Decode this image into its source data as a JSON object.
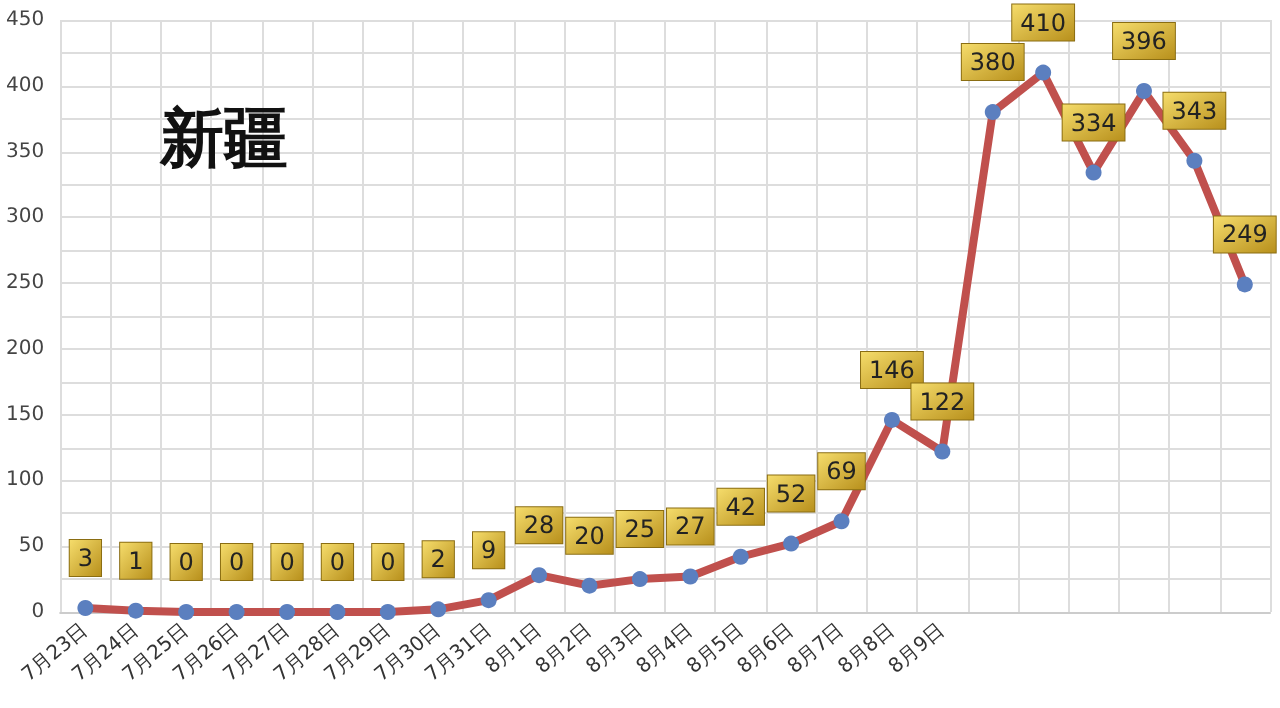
{
  "chart_data": {
    "type": "line",
    "title": "新疆",
    "categories": [
      "7月23日",
      "7月24日",
      "7月25日",
      "7月26日",
      "7月27日",
      "7月28日",
      "7月29日",
      "7月30日",
      "7月31日",
      "8月1日",
      "8月2日",
      "8月3日",
      "8月4日",
      "8月5日",
      "8月6日",
      "8月7日",
      "8月8日",
      "8月9日",
      null,
      null,
      null,
      null,
      null,
      null
    ],
    "series": [
      {
        "color": "#c0504d",
        "values": [
          3,
          1,
          0,
          0,
          0,
          0,
          0,
          2,
          9,
          28,
          20,
          25,
          27,
          42,
          52,
          69,
          146,
          122,
          380,
          410,
          334,
          396,
          343,
          249
        ]
      }
    ],
    "ylim": [
      0,
      450
    ],
    "yticks": [
      0,
      {
        "value": 25,
        "label": null
      },
      50,
      {
        "value": 75,
        "label": null
      },
      100,
      {
        "value": 125,
        "label": null
      },
      150,
      {
        "value": 175,
        "label": null
      },
      200,
      {
        "value": 225,
        "label": null
      },
      250,
      {
        "value": 275,
        "label": null
      },
      300,
      {
        "value": 325,
        "label": null
      },
      350,
      {
        "value": 375,
        "label": null
      },
      400,
      {
        "value": 425,
        "label": null
      },
      450
    ],
    "grid": true,
    "marker": "circle",
    "data_labels": true
  }
}
